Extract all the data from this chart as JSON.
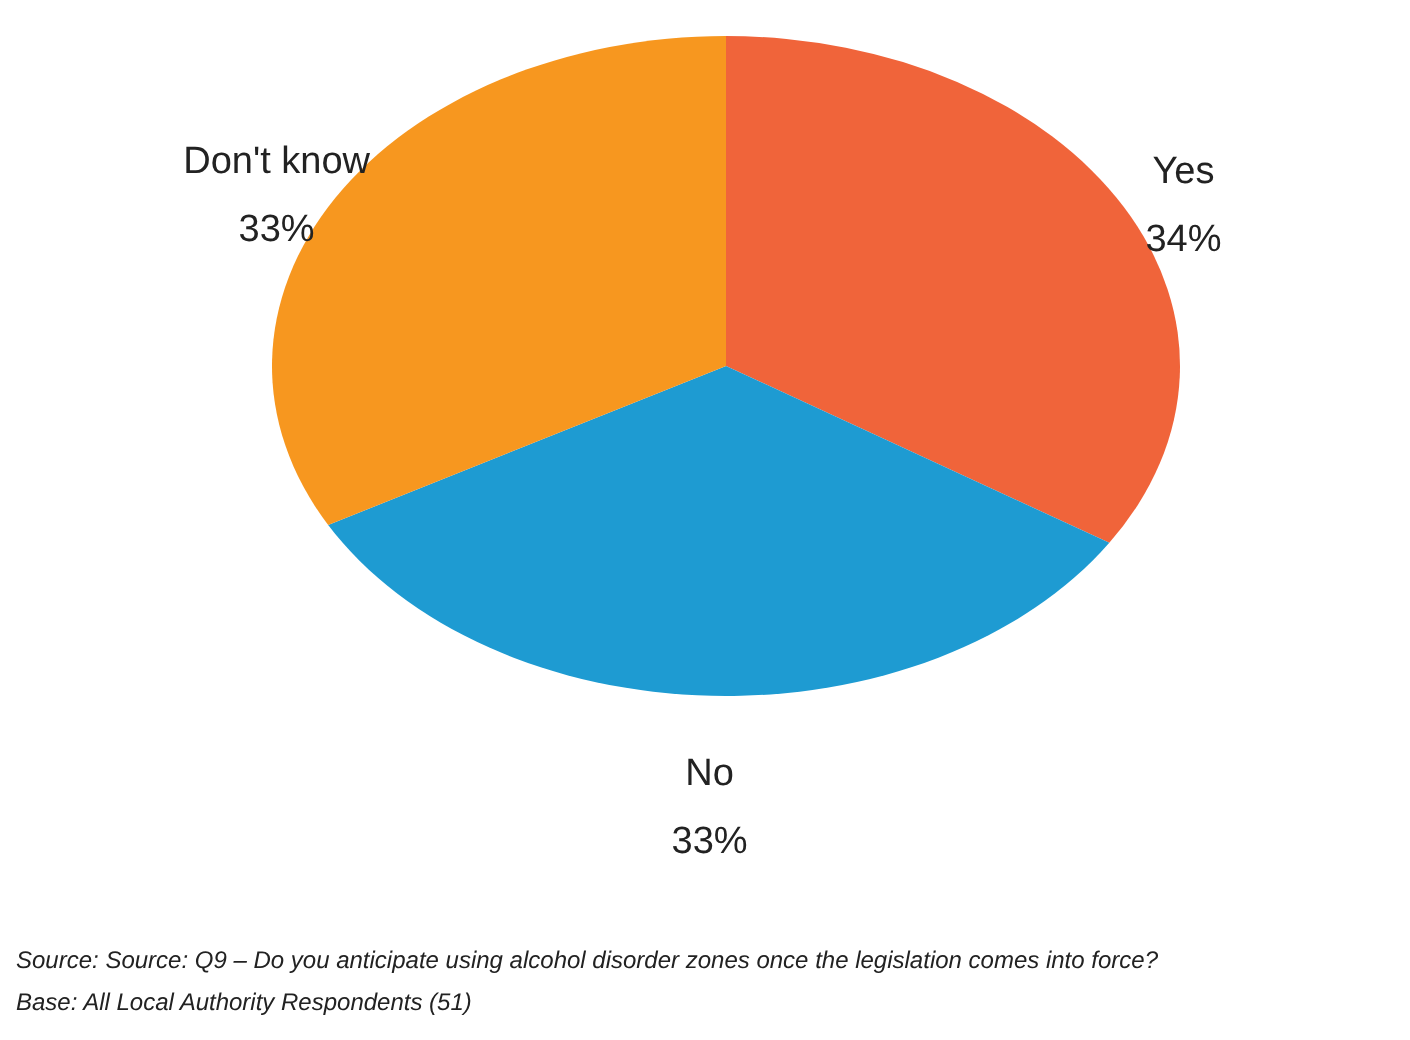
{
  "chart_data": {
    "type": "pie",
    "categories": [
      "Yes",
      "No",
      "Don't know"
    ],
    "values": [
      34,
      33,
      33
    ],
    "colors": [
      "#f0643a",
      "#1e9bd2",
      "#f7971f"
    ],
    "value_labels": [
      "34%",
      "33%",
      "33%"
    ],
    "annotations": [
      "Source: Source: Q9 – Do you anticipate using alcohol disorder zones once the legislation comes into force?",
      "Base: All Local Authority Respondents (51)"
    ]
  }
}
